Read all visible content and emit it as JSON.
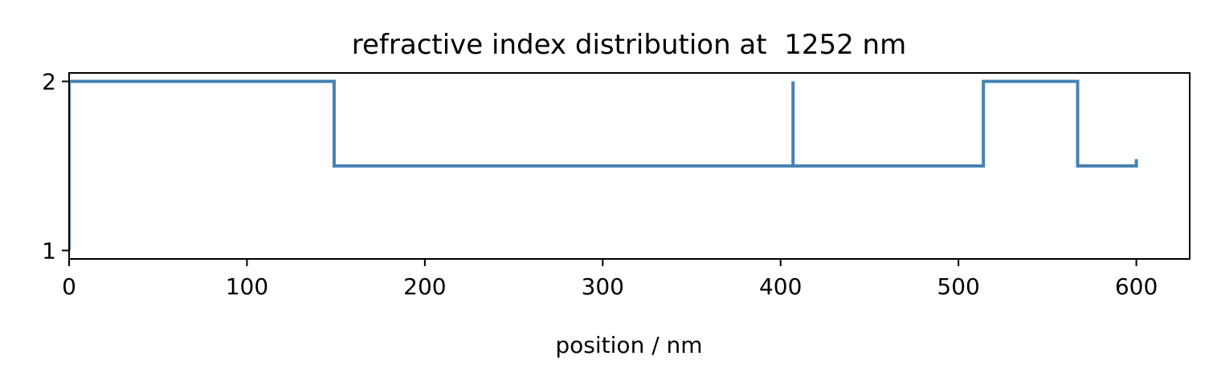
{
  "chart_data": {
    "type": "line",
    "title": "refractive index distribution at  1252 nm",
    "xlabel": "position / nm",
    "ylabel": "",
    "xlim": [
      0,
      630
    ],
    "ylim": [
      0.95,
      2.05
    ],
    "xticks": [
      0,
      100,
      200,
      300,
      400,
      500,
      600
    ],
    "yticks": [
      1,
      2
    ],
    "grid": false,
    "legend": "none",
    "series": [
      {
        "color": "#4682b4",
        "x": [
          0,
          0,
          149,
          149,
          407,
          407,
          407,
          514,
          514,
          567,
          567,
          600,
          600
        ],
        "y": [
          1.0,
          2.0,
          2.0,
          1.5,
          1.5,
          2.0,
          1.5,
          1.5,
          2.0,
          2.0,
          1.5,
          1.5,
          1.54
        ]
      }
    ]
  }
}
